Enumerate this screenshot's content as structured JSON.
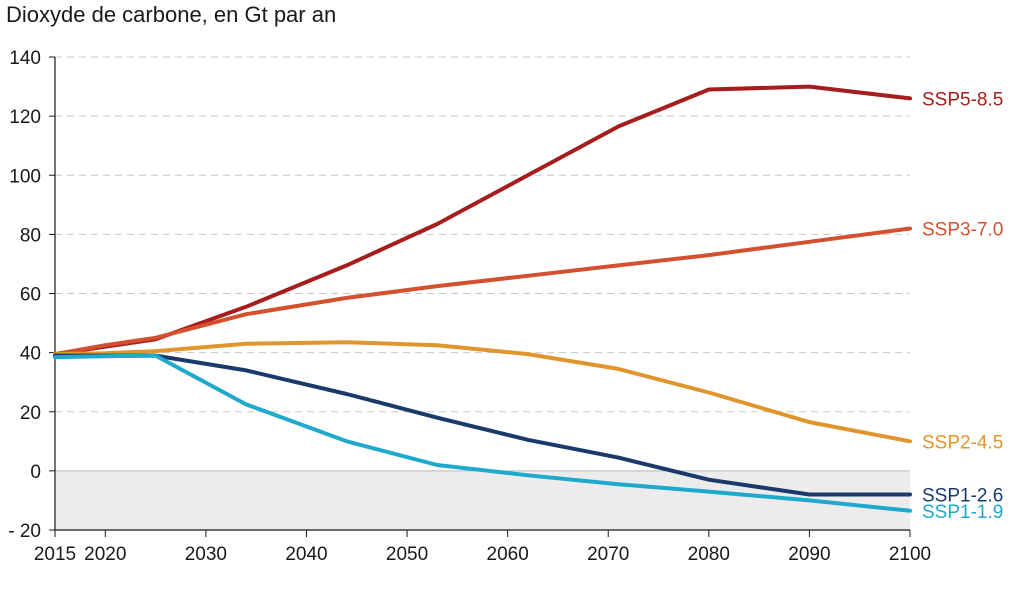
{
  "chart_data": {
    "type": "line",
    "title": "Dioxyde de carbone, en Gt par an",
    "xlabel": "",
    "ylabel": "",
    "xlim": [
      2015,
      2100
    ],
    "ylim": [
      -20,
      140
    ],
    "x_ticks": [
      2015,
      2020,
      2030,
      2040,
      2050,
      2060,
      2070,
      2080,
      2090,
      2100
    ],
    "y_ticks": [
      140,
      120,
      100,
      80,
      60,
      40,
      20,
      0,
      -20
    ],
    "y_tick_labels": [
      "140",
      "120",
      "100",
      "80",
      "60",
      "40",
      "20",
      "0",
      "- 20"
    ],
    "grid": "horizontal dashed",
    "negative_region_shaded": true,
    "series": [
      {
        "name": "SSP5-8.5",
        "color": "#a51d1d",
        "x": [
          2015,
          2020,
          2025,
          2034,
          2044,
          2053,
          2062,
          2071,
          2080,
          2090,
          2100
        ],
        "y": [
          39.5,
          42,
          44.5,
          55.5,
          69.5,
          83.5,
          100,
          116.5,
          129,
          130,
          126
        ]
      },
      {
        "name": "SSP3-7.0",
        "color": "#d4502f",
        "x": [
          2015,
          2020,
          2025,
          2034,
          2044,
          2053,
          2062,
          2071,
          2080,
          2090,
          2100
        ],
        "y": [
          39.5,
          42.5,
          45,
          53,
          58.5,
          62.5,
          66,
          69.5,
          73,
          77.5,
          82
        ]
      },
      {
        "name": "SSP2-4.5",
        "color": "#e0952d",
        "x": [
          2015,
          2020,
          2025,
          2034,
          2044,
          2053,
          2062,
          2071,
          2080,
          2090,
          2100
        ],
        "y": [
          39.5,
          39.8,
          40.5,
          43,
          43.5,
          42.5,
          39.5,
          34.5,
          26.5,
          16.5,
          10
        ]
      },
      {
        "name": "SSP1-2.6",
        "color": "#1b3a6b",
        "x": [
          2015,
          2020,
          2025,
          2034,
          2044,
          2053,
          2062,
          2071,
          2080,
          2090,
          2100
        ],
        "y": [
          39,
          39,
          39,
          34,
          26,
          18,
          10.5,
          4.5,
          -3,
          -8,
          -8
        ]
      },
      {
        "name": "SSP1-1.9",
        "color": "#1fa9cc",
        "x": [
          2015,
          2020,
          2025,
          2034,
          2044,
          2053,
          2062,
          2071,
          2080,
          2090,
          2100
        ],
        "y": [
          38.5,
          38.8,
          39,
          22.5,
          10,
          2,
          -1.5,
          -4.5,
          -7,
          -10,
          -13.5
        ]
      }
    ]
  }
}
